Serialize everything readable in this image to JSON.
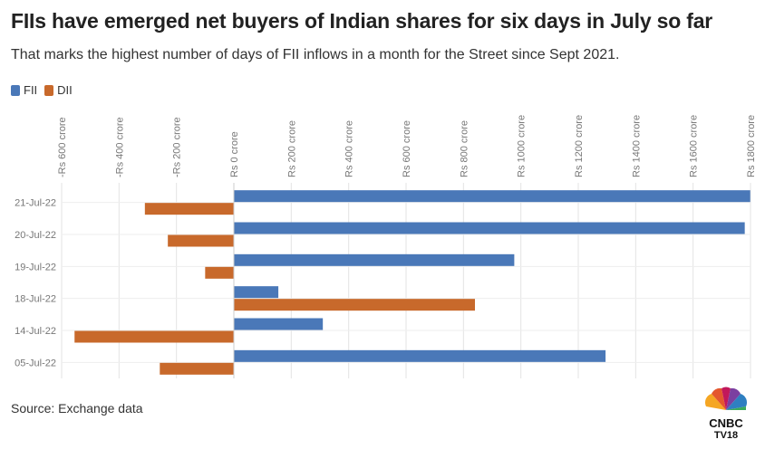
{
  "title": "FIIs have emerged net buyers of Indian shares for six days in July so far",
  "subtitle": "That marks the highest number of days of FII inflows in a month for the Street since Sept 2021.",
  "source": "Source: Exchange data",
  "logo": {
    "line1": "CNBC",
    "line2": "TV18"
  },
  "colors": {
    "fii": "#4a78b8",
    "dii": "#c8692b",
    "grid": "#e3e3e3",
    "tick": "#777777"
  },
  "chart_data": {
    "type": "bar",
    "orientation": "horizontal",
    "categories": [
      "21-Jul-22",
      "20-Jul-22",
      "19-Jul-22",
      "18-Jul-22",
      "14-Jul-22",
      "05-Jul-22"
    ],
    "series": [
      {
        "name": "FII",
        "values": [
          1799,
          1780,
          977,
          155,
          310,
          1295
        ]
      },
      {
        "name": "DII",
        "values": [
          -310,
          -230,
          -100,
          840,
          -555,
          -258
        ]
      }
    ],
    "xlim": [
      -600,
      1800
    ],
    "x_ticks": [
      -600,
      -400,
      -200,
      0,
      200,
      400,
      600,
      800,
      1000,
      1200,
      1400,
      1600,
      1800
    ],
    "x_tick_labels": [
      "-Rs 600 crore",
      "-Rs 400 crore",
      "-Rs 200 crore",
      "Rs 0 crore",
      "Rs 200 crore",
      "Rs 400 crore",
      "Rs 600 crore",
      "Rs 800 crore",
      "Rs 1000 crore",
      "Rs 1200 crore",
      "Rs 1400 crore",
      "Rs 1600 crore",
      "Rs 1800 crore"
    ],
    "xaxis_position": "top",
    "legend_position": "top-left",
    "grid": true
  }
}
